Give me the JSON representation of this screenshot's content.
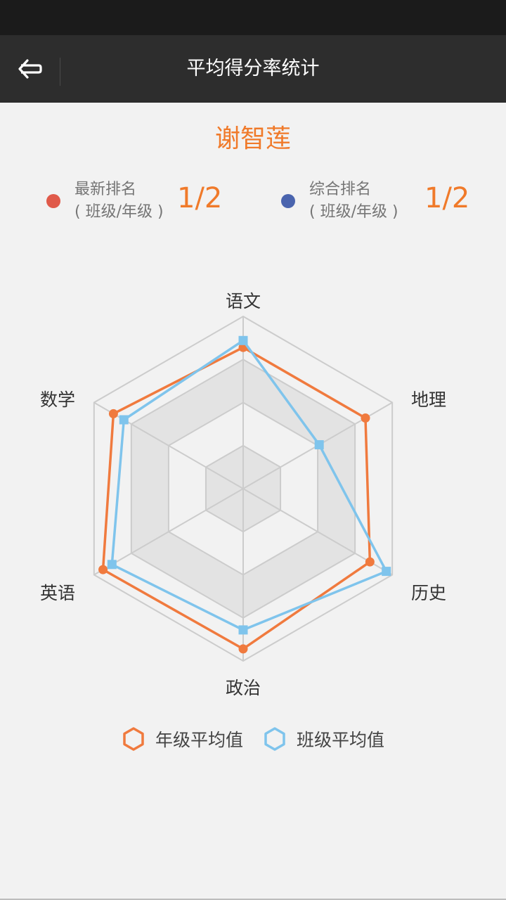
{
  "header": {
    "title": "平均得分率统计",
    "back_icon": "back-arrow-icon"
  },
  "student": {
    "name": "谢智莲"
  },
  "rankings": {
    "latest": {
      "label_line1": "最新排名",
      "label_line2": "( 班级/年级 )",
      "value": "1/2",
      "dot_color": "#e05a4a"
    },
    "overall": {
      "label_line1": "综合排名",
      "label_line2": "( 班级/年级 )",
      "value": "1/2",
      "dot_color": "#4a64ae"
    }
  },
  "chart_data": {
    "type": "radar",
    "indicators": [
      "语文",
      "地理",
      "历史",
      "政治",
      "英语",
      "数学"
    ],
    "max": 100,
    "series": [
      {
        "name": "年级平均值",
        "color": "#f07a3e",
        "values": [
          82,
          82,
          85,
          93,
          94,
          87
        ]
      },
      {
        "name": "班级平均值",
        "color": "#7fc4ec",
        "values": [
          86,
          51,
          96,
          82,
          88,
          80
        ]
      }
    ],
    "rings": 4
  }
}
